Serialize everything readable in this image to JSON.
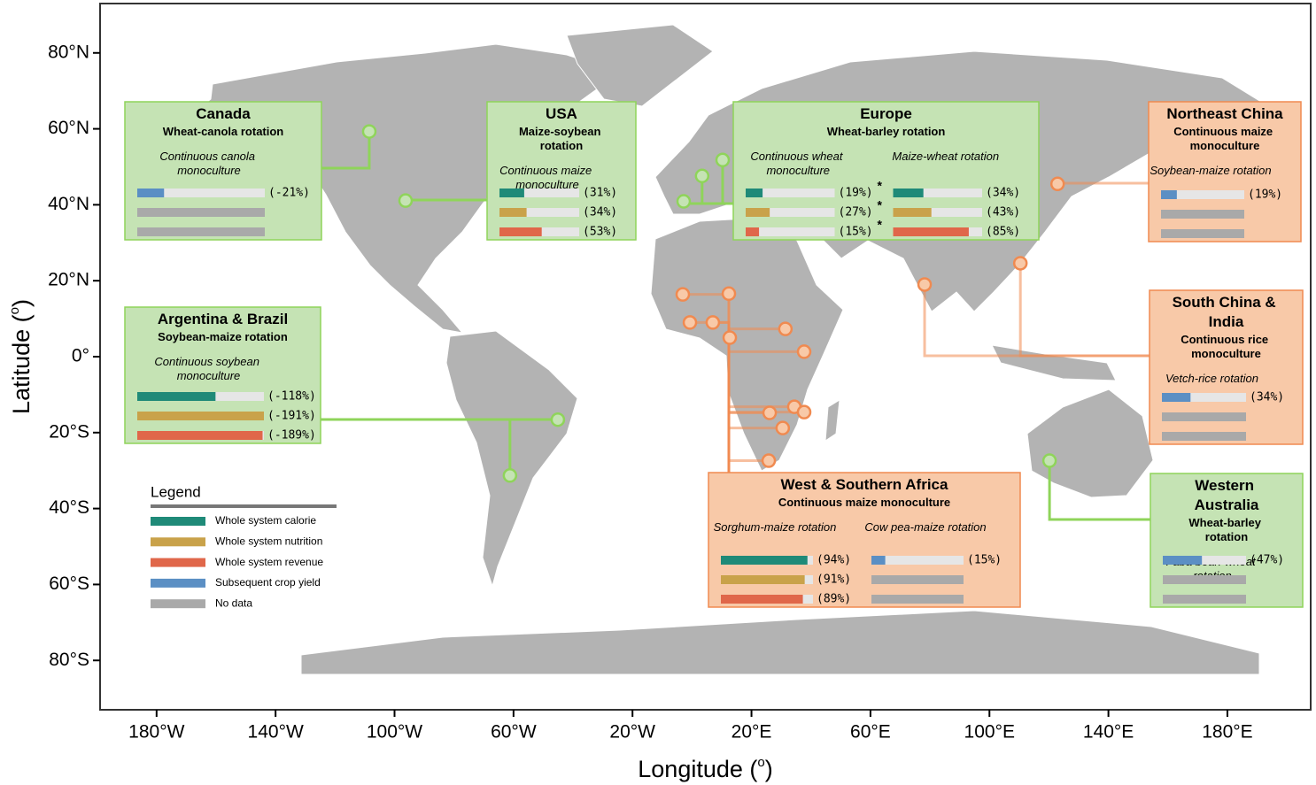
{
  "map": {
    "x_axis": {
      "label_parts": [
        "Longitude (",
        "o",
        ")"
      ],
      "xlim": [
        -199,
        208
      ],
      "ticks": [
        {
          "value": -180,
          "label": "180°W"
        },
        {
          "value": -140,
          "label": "140°W"
        },
        {
          "value": -100,
          "label": "100°W"
        },
        {
          "value": -60,
          "label": "60°W"
        },
        {
          "value": -20,
          "label": "20°W"
        },
        {
          "value": 20,
          "label": "20°E"
        },
        {
          "value": 60,
          "label": "60°E"
        },
        {
          "value": 100,
          "label": "100°E"
        },
        {
          "value": 140,
          "label": "140°E"
        },
        {
          "value": 180,
          "label": "180°E"
        }
      ]
    },
    "y_axis": {
      "label_parts": [
        "Latitude (",
        "o",
        ")"
      ],
      "ylim": [
        -93,
        93
      ],
      "ticks": [
        {
          "value": 80,
          "label": "80°N"
        },
        {
          "value": 60,
          "label": "60°N"
        },
        {
          "value": 40,
          "label": "40°N"
        },
        {
          "value": 20,
          "label": "20°N"
        },
        {
          "value": 0,
          "label": "0°"
        },
        {
          "value": -20,
          "label": "20°S"
        },
        {
          "value": -40,
          "label": "40°S"
        },
        {
          "value": -60,
          "label": "60°S"
        },
        {
          "value": -80,
          "label": "80°S"
        }
      ]
    }
  },
  "legend": {
    "title": "Legend",
    "items": [
      {
        "label": "Whole system calorie",
        "color": "#1f8a78"
      },
      {
        "label": "Whole system nutrition",
        "color": "#c9a24a"
      },
      {
        "label": "Whole system revenue",
        "color": "#e0674a"
      },
      {
        "label": "Subsequent crop yield",
        "color": "#5b8fc4"
      },
      {
        "label": "No data",
        "color": "#a9a9a9"
      }
    ]
  },
  "regions": [
    {
      "title": "Canada",
      "subtitle": "Wheat-canola rotation",
      "color": "#8fd45a",
      "fill": "#c5e3b4",
      "sites": [
        {
          "lon": -108.5,
          "lat": 59.3
        }
      ],
      "groups": [
        {
          "label": "Continuous canola monoculture",
          "bars": [
            {
              "value": -21,
              "label": "(-21%)",
              "color": "#5b8fc4"
            },
            {
              "value": null,
              "color": "#a9a9a9"
            },
            {
              "value": null,
              "color": "#a9a9a9"
            }
          ]
        }
      ]
    },
    {
      "title": "USA",
      "subtitle": "Maize-soybean rotation",
      "color": "#8fd45a",
      "fill": "#c5e3b4",
      "sites": [
        {
          "lon": -96.3,
          "lat": 41.1
        }
      ],
      "groups": [
        {
          "label": "Continuous maize monoculture",
          "bars": [
            {
              "value": 31,
              "label": "(31%)",
              "color": "#1f8a78"
            },
            {
              "value": 34,
              "label": "(34%)",
              "color": "#c9a24a"
            },
            {
              "value": 53,
              "label": "(53%)",
              "color": "#e0674a"
            }
          ]
        }
      ]
    },
    {
      "title": "Europe",
      "subtitle": "Wheat-barley rotation",
      "color": "#8fd45a",
      "fill": "#c5e3b4",
      "sites": [
        {
          "lon": -2.8,
          "lat": 40.9
        },
        {
          "lon": 3.4,
          "lat": 47.6
        },
        {
          "lon": 10.3,
          "lat": 51.8
        }
      ],
      "groups": [
        {
          "label": "Continuous wheat monoculture",
          "bars": [
            {
              "value": 19,
              "label": "(19%)",
              "note": "*",
              "color": "#1f8a78"
            },
            {
              "value": 27,
              "label": "(27%)",
              "note": "*",
              "color": "#c9a24a"
            },
            {
              "value": 15,
              "label": "(15%)",
              "note": "*",
              "color": "#e0674a"
            }
          ]
        },
        {
          "label": "Maize-wheat rotation",
          "bars": [
            {
              "value": 34,
              "label": "(34%)",
              "color": "#1f8a78"
            },
            {
              "value": 43,
              "label": "(43%)",
              "color": "#c9a24a"
            },
            {
              "value": 85,
              "label": "(85%)",
              "color": "#e0674a"
            }
          ]
        }
      ]
    },
    {
      "title": "Northeast China",
      "subtitle": "Continuous maize monoculture",
      "color": "#f08a50",
      "fill": "#f8c9a8",
      "sites": [
        {
          "lon": 122.9,
          "lat": 45.5
        }
      ],
      "groups": [
        {
          "label": "Soybean-maize rotation",
          "bars": [
            {
              "value": 19,
              "label": "(19%)",
              "color": "#5b8fc4"
            },
            {
              "value": null,
              "color": "#a9a9a9"
            },
            {
              "value": null,
              "color": "#a9a9a9"
            }
          ]
        }
      ]
    },
    {
      "title": "Argentina & Brazil",
      "subtitle": "Soybean-maize rotation",
      "color": "#8fd45a",
      "fill": "#c5e3b4",
      "sites": [
        {
          "lon": -45.1,
          "lat": -16.6
        },
        {
          "lon": -61.2,
          "lat": -31.3
        }
      ],
      "groups": [
        {
          "label": "Continuous soybean monoculture",
          "bars": [
            {
              "value": -118,
              "label": "(-118%)",
              "color": "#1f8a78"
            },
            {
              "value": -191,
              "label": "(-191%)",
              "color": "#c9a24a"
            },
            {
              "value": -189,
              "label": "(-189%)",
              "color": "#e0674a"
            }
          ]
        }
      ]
    },
    {
      "title": "South China & India",
      "subtitle": "Continuous rice monoculture",
      "color": "#f08a50",
      "fill": "#f8c9a8",
      "sites": [
        {
          "lon": 110.4,
          "lat": 24.6
        },
        {
          "lon": 78.2,
          "lat": 19.0
        }
      ],
      "groups": [
        {
          "label": "Vetch-rice rotation",
          "bars": [
            {
              "value": 34,
              "label": "(34%)",
              "color": "#5b8fc4"
            },
            {
              "value": null,
              "color": "#a9a9a9"
            },
            {
              "value": null,
              "color": "#a9a9a9"
            }
          ]
        }
      ]
    },
    {
      "title": "West & Southern Africa",
      "subtitle": "Continuous maize monoculture",
      "color": "#f08a50",
      "fill": "#f8c9a8",
      "sites": [
        {
          "lon": -3.1,
          "lat": 16.4
        },
        {
          "lon": 12.4,
          "lat": 16.6
        },
        {
          "lon": -0.7,
          "lat": 9.0
        },
        {
          "lon": 7.0,
          "lat": 9.0
        },
        {
          "lon": 12.7,
          "lat": 5.0
        },
        {
          "lon": 31.4,
          "lat": 7.3
        },
        {
          "lon": 37.7,
          "lat": 1.3
        },
        {
          "lon": 34.4,
          "lat": -13.2
        },
        {
          "lon": 26.1,
          "lat": -14.8
        },
        {
          "lon": 37.7,
          "lat": -14.6
        },
        {
          "lon": 30.5,
          "lat": -18.8
        },
        {
          "lon": 25.8,
          "lat": -27.4
        }
      ],
      "groups": [
        {
          "label": "Sorghum-maize rotation",
          "bars": [
            {
              "value": 94,
              "label": "(94%)",
              "color": "#1f8a78"
            },
            {
              "value": 91,
              "label": "(91%)",
              "color": "#c9a24a"
            },
            {
              "value": 89,
              "label": "(89%)",
              "color": "#e0674a"
            }
          ]
        },
        {
          "label": "Cow pea-maize rotation",
          "bars": [
            {
              "value": 15,
              "label": "(15%)",
              "color": "#5b8fc4"
            },
            {
              "value": null,
              "color": "#a9a9a9"
            },
            {
              "value": null,
              "color": "#a9a9a9"
            }
          ]
        }
      ]
    },
    {
      "title": "Western Australia",
      "subtitle": "Wheat-barley rotation",
      "color": "#8fd45a",
      "fill": "#c5e3b4",
      "sites": [
        {
          "lon": 120.2,
          "lat": -27.4
        }
      ],
      "groups": [
        {
          "label": "Faba bean-wheat rotation",
          "bars": [
            {
              "value": 47,
              "label": "(47%)",
              "color": "#5b8fc4"
            },
            {
              "value": null,
              "color": "#a9a9a9"
            },
            {
              "value": null,
              "color": "#a9a9a9"
            }
          ]
        }
      ]
    }
  ]
}
